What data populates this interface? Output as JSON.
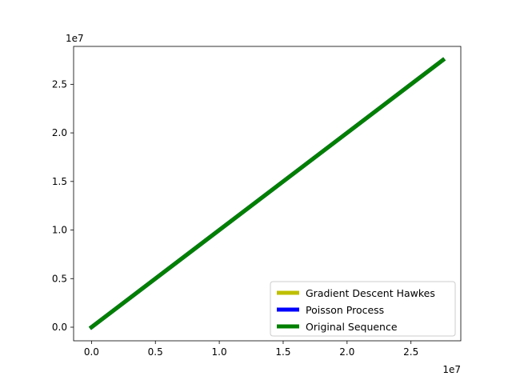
{
  "chart_data": {
    "type": "line",
    "x_offset_label": "1e7",
    "y_offset_label": "1e7",
    "xlim": [
      -0.14,
      2.89
    ],
    "ylim": [
      -0.14,
      2.89
    ],
    "xticks": [
      {
        "value": 0.0,
        "label": "0.0"
      },
      {
        "value": 0.5,
        "label": "0.5"
      },
      {
        "value": 1.0,
        "label": "1.0"
      },
      {
        "value": 1.5,
        "label": "1.5"
      },
      {
        "value": 2.0,
        "label": "2.0"
      },
      {
        "value": 2.5,
        "label": "2.5"
      }
    ],
    "yticks": [
      {
        "value": 0.0,
        "label": "0.0"
      },
      {
        "value": 0.5,
        "label": "0.5"
      },
      {
        "value": 1.0,
        "label": "1.0"
      },
      {
        "value": 1.5,
        "label": "1.5"
      },
      {
        "value": 2.0,
        "label": "2.0"
      },
      {
        "value": 2.5,
        "label": "2.5"
      }
    ],
    "series": [
      {
        "name": "Gradient Descent Hawkes",
        "color": "#bfbf00",
        "x": [
          0.0,
          2.75
        ],
        "y": [
          0.0,
          2.75
        ]
      },
      {
        "name": "Poisson Process",
        "color": "#0000ff",
        "x": [
          0.0,
          2.75
        ],
        "y": [
          0.0,
          2.75
        ]
      },
      {
        "name": "Original Sequence",
        "color": "#008000",
        "x": [
          0.0,
          2.75
        ],
        "y": [
          0.0,
          2.75
        ]
      }
    ],
    "legend_position": "lower-right",
    "grid": false
  }
}
